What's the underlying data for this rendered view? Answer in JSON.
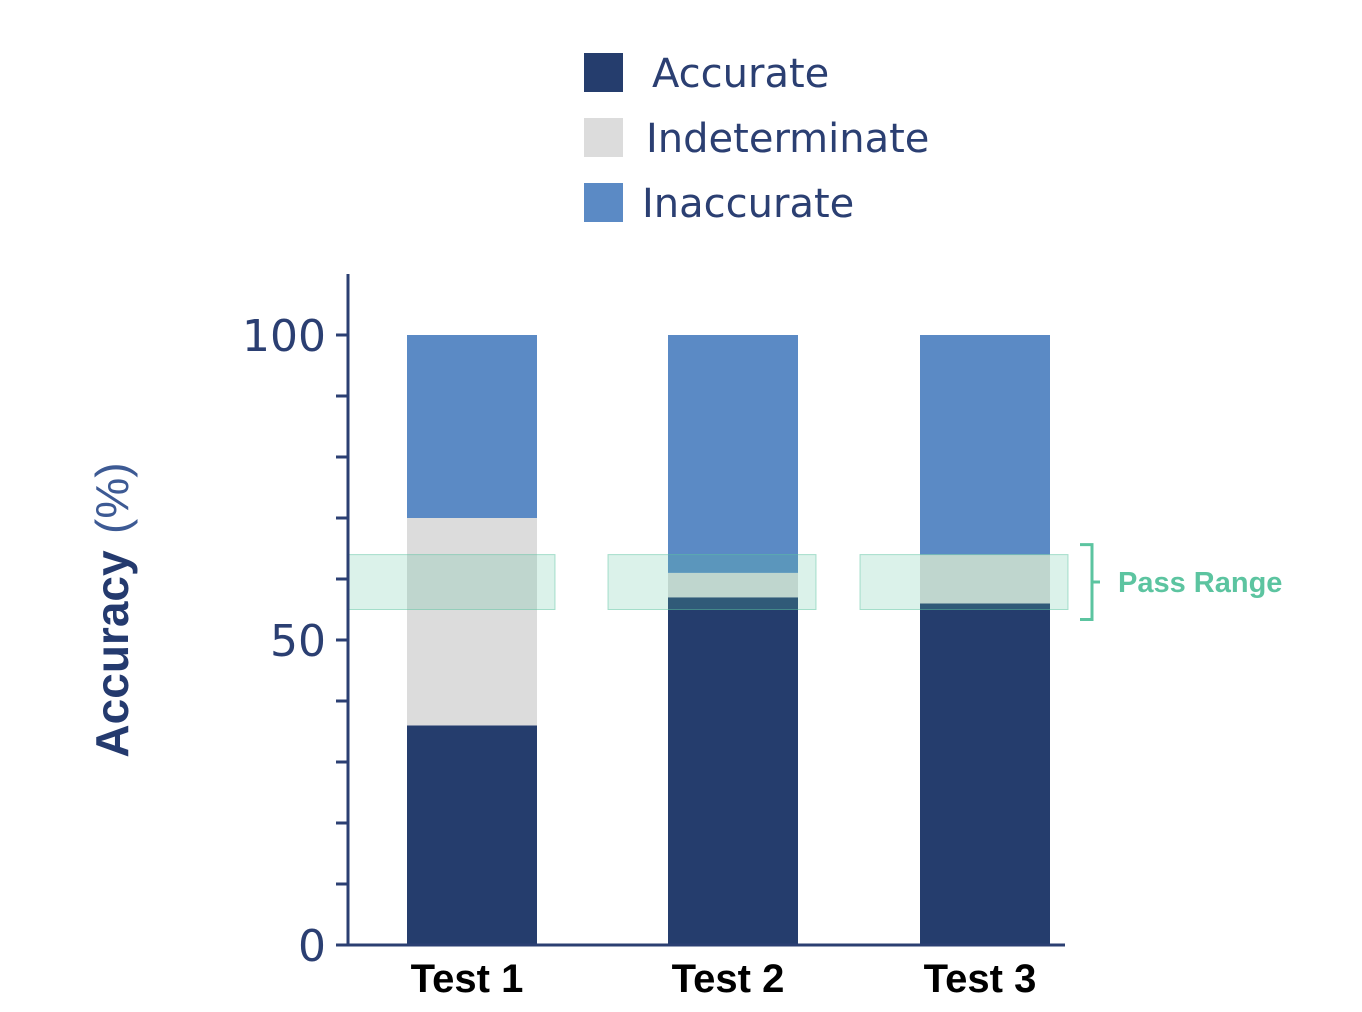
{
  "chart_data": {
    "type": "bar",
    "stacked": true,
    "categories": [
      "Test 1",
      "Test 2",
      "Test 3"
    ],
    "series": [
      {
        "name": "Accurate",
        "values": [
          36,
          57,
          56
        ],
        "color": "#253d6d"
      },
      {
        "name": "Indeterminate",
        "values": [
          34,
          4,
          8
        ],
        "color": "#dcdcdc"
      },
      {
        "name": "Inaccurate",
        "values": [
          30,
          39,
          36
        ],
        "color": "#5b8ac5"
      }
    ],
    "ylabel": "Accuracy",
    "ylabel_unit": "(%)",
    "ylim": [
      0,
      110
    ],
    "yticks": [
      0,
      50,
      100
    ],
    "yticks_text": [
      "0",
      "50",
      "100"
    ],
    "legend_position": "top",
    "pass_range": {
      "label": "Pass Range",
      "min": 55,
      "max": 64,
      "color": "#5cc4a0"
    }
  }
}
